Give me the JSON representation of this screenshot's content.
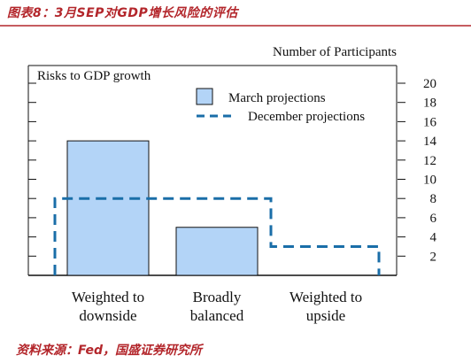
{
  "figure": {
    "title": "图表8：3月SEP对GDP增长风险的评估",
    "source": "资料来源：Fed，国盛证券研究所"
  },
  "colors": {
    "title_red": "#b3262b",
    "bar_fill": "#b3d4f7",
    "dash_line": "#1a6ea8",
    "axis": "#111111"
  },
  "chart_data": {
    "type": "bar",
    "panel_title": "Risks to GDP growth",
    "ylabel": "Number of Participants",
    "categories": [
      "Weighted to\ndownside",
      "Broadly\nbalanced",
      "Weighted to\nupside"
    ],
    "category_lines": [
      [
        "Weighted to",
        "downside"
      ],
      [
        "Broadly",
        "balanced"
      ],
      [
        "Weighted to",
        "upside"
      ]
    ],
    "series": [
      {
        "name": "March projections",
        "style": "bar",
        "values": [
          14,
          5,
          0
        ]
      },
      {
        "name": "December projections",
        "style": "dashed-step",
        "values": [
          8,
          8,
          3
        ]
      }
    ],
    "yticks": [
      2,
      4,
      6,
      8,
      10,
      12,
      14,
      16,
      18,
      20
    ],
    "ylim": [
      0,
      21
    ],
    "legend_position": "top-center",
    "grid": false
  }
}
